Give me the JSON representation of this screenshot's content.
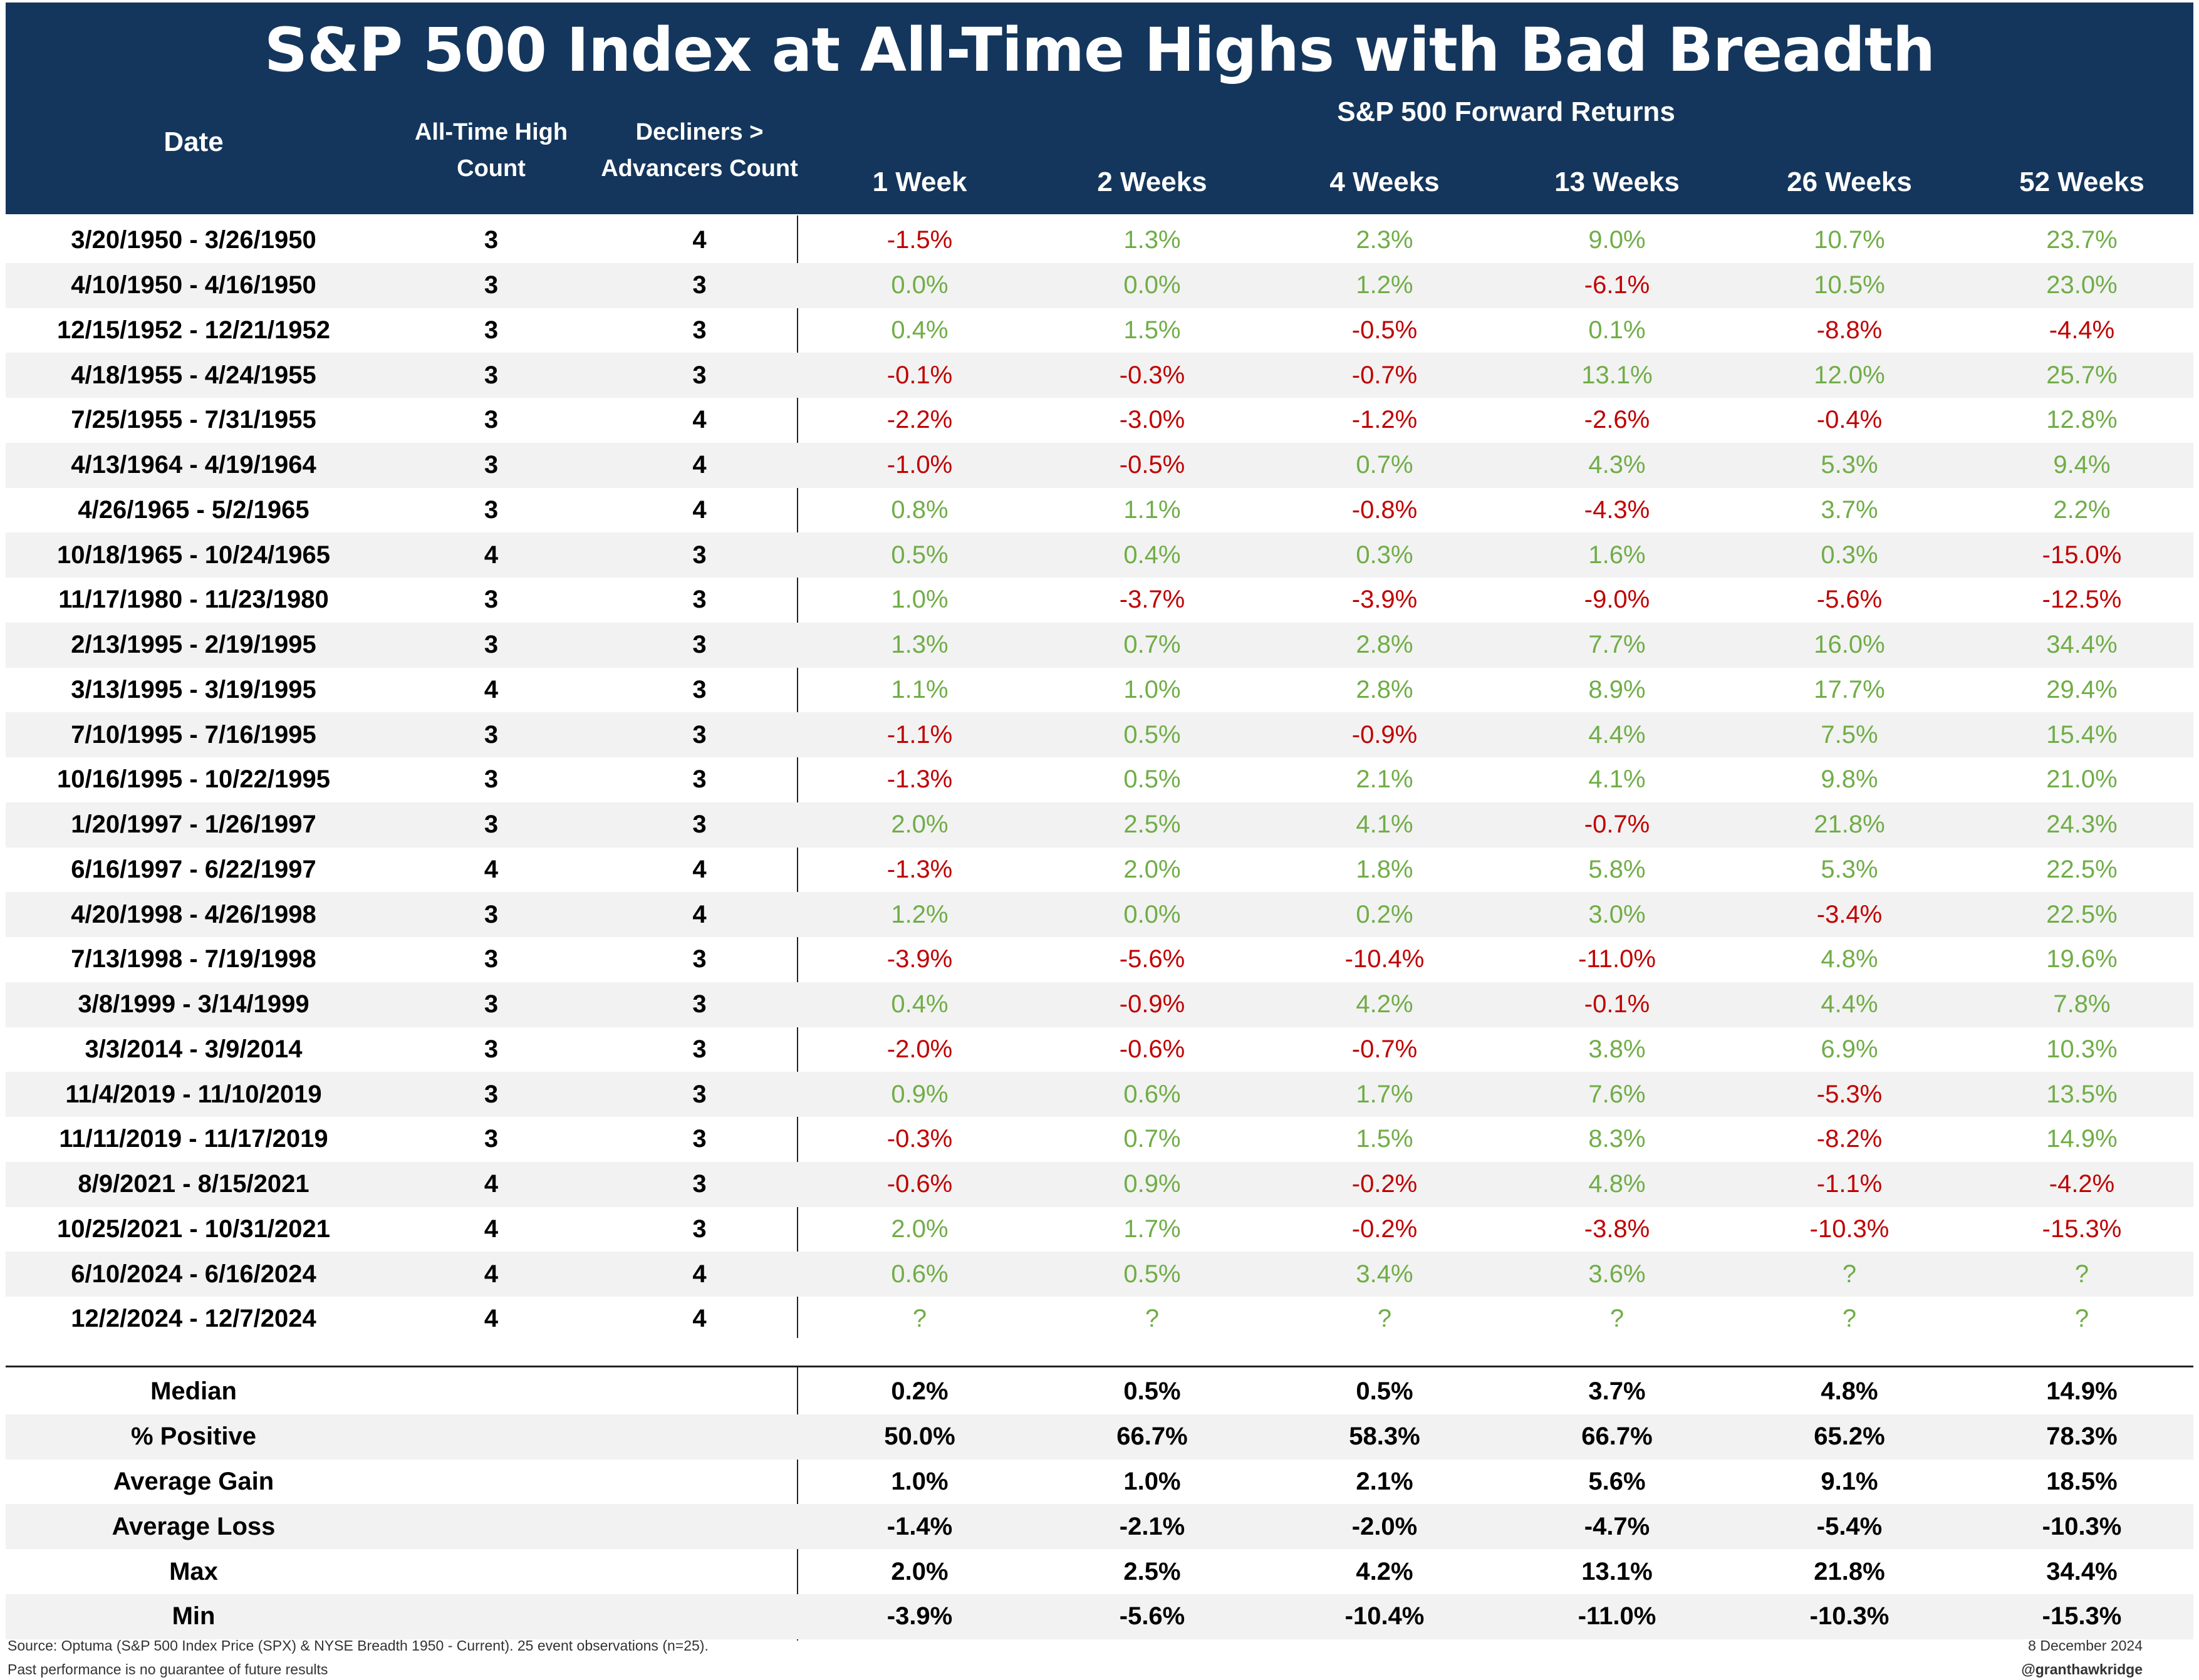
{
  "title": "S&P 500 Index at All-Time Highs with Bad Breadth",
  "headers": {
    "date": "Date",
    "ath_line1": "All-Time High",
    "ath_line2": "Count",
    "dec_line1": "Decliners >",
    "dec_line2": "Advancers Count",
    "forward_returns": "S&P 500 Forward Returns",
    "weeks": [
      "1 Week",
      "2 Weeks",
      "4 Weeks",
      "13 Weeks",
      "26 Weeks",
      "52 Weeks"
    ]
  },
  "colors": {
    "header_bg": "#14365c",
    "positive": "#70ad47",
    "negative": "#c00000",
    "shade": "#f2f2f2"
  },
  "chart_data": {
    "type": "table",
    "title": "S&P 500 Index at All-Time Highs with Bad Breadth",
    "columns": [
      "Date",
      "All-Time High Count",
      "Decliners > Advancers Count",
      "1 Week",
      "2 Weeks",
      "4 Weeks",
      "13 Weeks",
      "26 Weeks",
      "52 Weeks"
    ],
    "rows": [
      {
        "date": "3/20/1950 - 3/26/1950",
        "ath": "3",
        "dec": "4",
        "r": [
          "-1.5%",
          "1.3%",
          "2.3%",
          "9.0%",
          "10.7%",
          "23.7%"
        ]
      },
      {
        "date": "4/10/1950 - 4/16/1950",
        "ath": "3",
        "dec": "3",
        "r": [
          "0.0%",
          "0.0%",
          "1.2%",
          "-6.1%",
          "10.5%",
          "23.0%"
        ]
      },
      {
        "date": "12/15/1952 - 12/21/1952",
        "ath": "3",
        "dec": "3",
        "r": [
          "0.4%",
          "1.5%",
          "-0.5%",
          "0.1%",
          "-8.8%",
          "-4.4%"
        ]
      },
      {
        "date": "4/18/1955 - 4/24/1955",
        "ath": "3",
        "dec": "3",
        "r": [
          "-0.1%",
          "-0.3%",
          "-0.7%",
          "13.1%",
          "12.0%",
          "25.7%"
        ]
      },
      {
        "date": "7/25/1955 - 7/31/1955",
        "ath": "3",
        "dec": "4",
        "r": [
          "-2.2%",
          "-3.0%",
          "-1.2%",
          "-2.6%",
          "-0.4%",
          "12.8%"
        ]
      },
      {
        "date": "4/13/1964 - 4/19/1964",
        "ath": "3",
        "dec": "4",
        "r": [
          "-1.0%",
          "-0.5%",
          "0.7%",
          "4.3%",
          "5.3%",
          "9.4%"
        ]
      },
      {
        "date": "4/26/1965 - 5/2/1965",
        "ath": "3",
        "dec": "4",
        "r": [
          "0.8%",
          "1.1%",
          "-0.8%",
          "-4.3%",
          "3.7%",
          "2.2%"
        ]
      },
      {
        "date": "10/18/1965 - 10/24/1965",
        "ath": "4",
        "dec": "3",
        "r": [
          "0.5%",
          "0.4%",
          "0.3%",
          "1.6%",
          "0.3%",
          "-15.0%"
        ]
      },
      {
        "date": "11/17/1980 - 11/23/1980",
        "ath": "3",
        "dec": "3",
        "r": [
          "1.0%",
          "-3.7%",
          "-3.9%",
          "-9.0%",
          "-5.6%",
          "-12.5%"
        ]
      },
      {
        "date": "2/13/1995 - 2/19/1995",
        "ath": "3",
        "dec": "3",
        "r": [
          "1.3%",
          "0.7%",
          "2.8%",
          "7.7%",
          "16.0%",
          "34.4%"
        ]
      },
      {
        "date": "3/13/1995 - 3/19/1995",
        "ath": "4",
        "dec": "3",
        "r": [
          "1.1%",
          "1.0%",
          "2.8%",
          "8.9%",
          "17.7%",
          "29.4%"
        ]
      },
      {
        "date": "7/10/1995 - 7/16/1995",
        "ath": "3",
        "dec": "3",
        "r": [
          "-1.1%",
          "0.5%",
          "-0.9%",
          "4.4%",
          "7.5%",
          "15.4%"
        ]
      },
      {
        "date": "10/16/1995 - 10/22/1995",
        "ath": "3",
        "dec": "3",
        "r": [
          "-1.3%",
          "0.5%",
          "2.1%",
          "4.1%",
          "9.8%",
          "21.0%"
        ]
      },
      {
        "date": "1/20/1997 - 1/26/1997",
        "ath": "3",
        "dec": "3",
        "r": [
          "2.0%",
          "2.5%",
          "4.1%",
          "-0.7%",
          "21.8%",
          "24.3%"
        ]
      },
      {
        "date": "6/16/1997 - 6/22/1997",
        "ath": "4",
        "dec": "4",
        "r": [
          "-1.3%",
          "2.0%",
          "1.8%",
          "5.8%",
          "5.3%",
          "22.5%"
        ]
      },
      {
        "date": "4/20/1998 - 4/26/1998",
        "ath": "3",
        "dec": "4",
        "r": [
          "1.2%",
          "0.0%",
          "0.2%",
          "3.0%",
          "-3.4%",
          "22.5%"
        ]
      },
      {
        "date": "7/13/1998 - 7/19/1998",
        "ath": "3",
        "dec": "3",
        "r": [
          "-3.9%",
          "-5.6%",
          "-10.4%",
          "-11.0%",
          "4.8%",
          "19.6%"
        ]
      },
      {
        "date": "3/8/1999 - 3/14/1999",
        "ath": "3",
        "dec": "3",
        "r": [
          "0.4%",
          "-0.9%",
          "4.2%",
          "-0.1%",
          "4.4%",
          "7.8%"
        ]
      },
      {
        "date": "3/3/2014 - 3/9/2014",
        "ath": "3",
        "dec": "3",
        "r": [
          "-2.0%",
          "-0.6%",
          "-0.7%",
          "3.8%",
          "6.9%",
          "10.3%"
        ]
      },
      {
        "date": "11/4/2019 - 11/10/2019",
        "ath": "3",
        "dec": "3",
        "r": [
          "0.9%",
          "0.6%",
          "1.7%",
          "7.6%",
          "-5.3%",
          "13.5%"
        ]
      },
      {
        "date": "11/11/2019 - 11/17/2019",
        "ath": "3",
        "dec": "3",
        "r": [
          "-0.3%",
          "0.7%",
          "1.5%",
          "8.3%",
          "-8.2%",
          "14.9%"
        ]
      },
      {
        "date": "8/9/2021 - 8/15/2021",
        "ath": "4",
        "dec": "3",
        "r": [
          "-0.6%",
          "0.9%",
          "-0.2%",
          "4.8%",
          "-1.1%",
          "-4.2%"
        ]
      },
      {
        "date": "10/25/2021 - 10/31/2021",
        "ath": "4",
        "dec": "3",
        "r": [
          "2.0%",
          "1.7%",
          "-0.2%",
          "-3.8%",
          "-10.3%",
          "-15.3%"
        ]
      },
      {
        "date": "6/10/2024 - 6/16/2024",
        "ath": "4",
        "dec": "4",
        "r": [
          "0.6%",
          "0.5%",
          "3.4%",
          "3.6%",
          "?",
          "?"
        ]
      },
      {
        "date": "12/2/2024 - 12/7/2024",
        "ath": "4",
        "dec": "4",
        "r": [
          "?",
          "?",
          "?",
          "?",
          "?",
          "?"
        ]
      }
    ],
    "stats": [
      {
        "label": "Median",
        "r": [
          "0.2%",
          "0.5%",
          "0.5%",
          "3.7%",
          "4.8%",
          "14.9%"
        ]
      },
      {
        "label": "% Positive",
        "r": [
          "50.0%",
          "66.7%",
          "58.3%",
          "66.7%",
          "65.2%",
          "78.3%"
        ]
      },
      {
        "label": "Average Gain",
        "r": [
          "1.0%",
          "1.0%",
          "2.1%",
          "5.6%",
          "9.1%",
          "18.5%"
        ]
      },
      {
        "label": "Average Loss",
        "r": [
          "-1.4%",
          "-2.1%",
          "-2.0%",
          "-4.7%",
          "-5.4%",
          "-10.3%"
        ]
      },
      {
        "label": "Max",
        "r": [
          "2.0%",
          "2.5%",
          "4.2%",
          "13.1%",
          "21.8%",
          "34.4%"
        ]
      },
      {
        "label": "Min",
        "r": [
          "-3.9%",
          "-5.6%",
          "-10.4%",
          "-11.0%",
          "-10.3%",
          "-15.3%"
        ]
      }
    ]
  },
  "footer": {
    "source": "Source: Optuma (S&P 500 Index Price (SPX) & NYSE Breadth 1950 - Current). 25 event observations (n=25).",
    "disclaimer": "Past performance is no guarantee of future results",
    "date": "8 December 2024",
    "handle": "@granthawkridge"
  }
}
